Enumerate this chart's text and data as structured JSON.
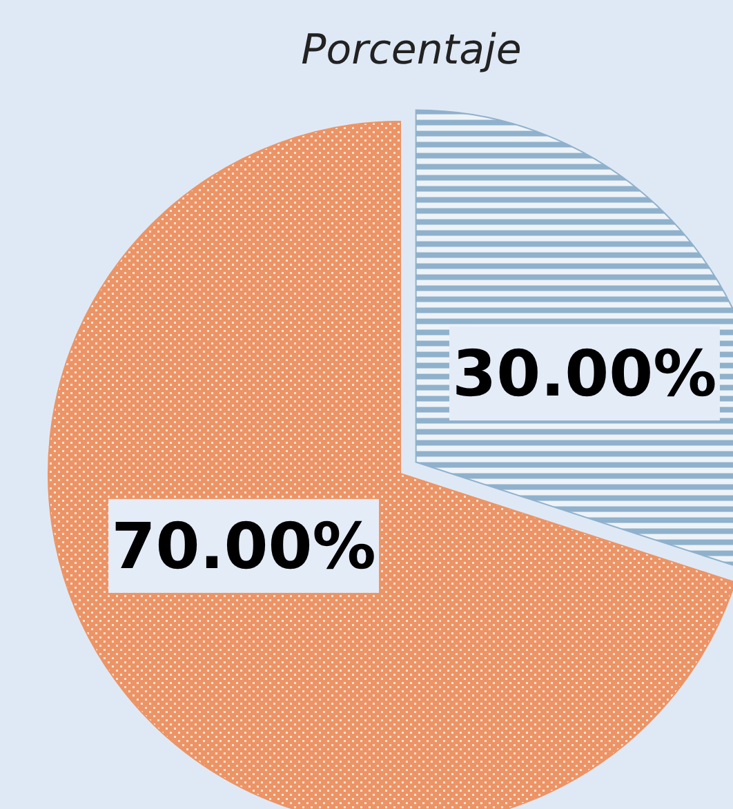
{
  "chart_data": {
    "type": "pie",
    "title": "Porcentaje",
    "categories": [
      null,
      null
    ],
    "values": [
      30,
      70
    ],
    "colors": [
      "#8fb1cc",
      "#ec9466"
    ],
    "value_labels": [
      "30.00%",
      "70.00%"
    ]
  }
}
